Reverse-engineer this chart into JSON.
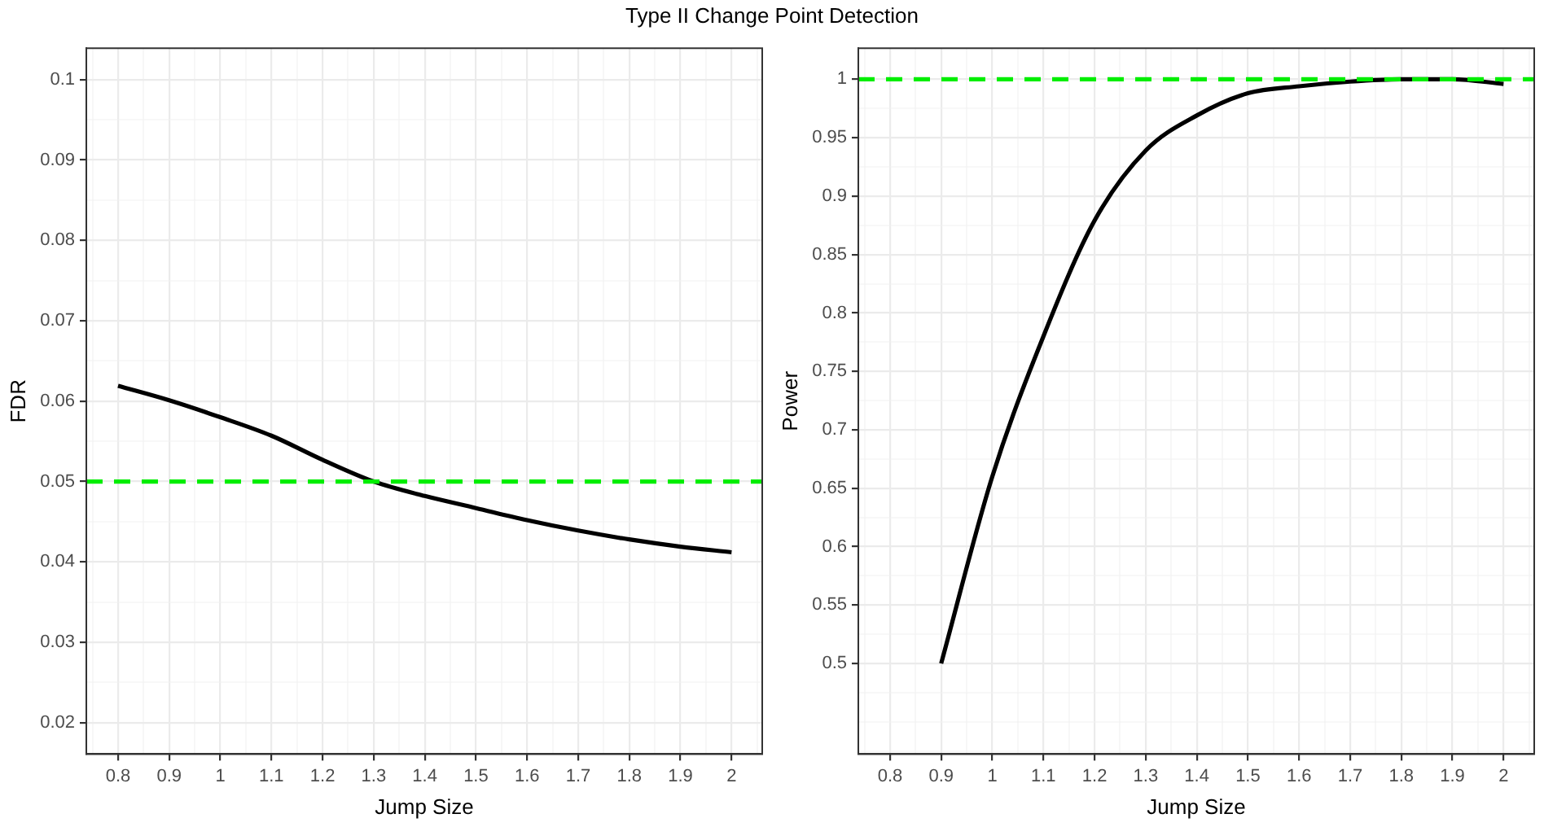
{
  "chart_data": [
    {
      "type": "line",
      "title": "Type II Change Point Detection",
      "xlabel": "Jump Size",
      "ylabel": "FDR",
      "grid": true,
      "marker": "none",
      "line_style": "solid",
      "x": [
        0.8,
        0.9,
        1.0,
        1.1,
        1.2,
        1.3,
        1.4,
        1.5,
        1.6,
        1.7,
        1.8,
        1.9,
        2.0
      ],
      "series": [
        {
          "color": "#000000",
          "values": [
            0.0619,
            0.0601,
            0.058,
            0.0557,
            0.0527,
            0.05,
            0.0482,
            0.0467,
            0.0452,
            0.0439,
            0.0428,
            0.0419,
            0.0412
          ]
        }
      ],
      "xlim": [
        0.738,
        2.06
      ],
      "ylim": [
        0.0161,
        0.1039
      ],
      "xticks": [
        {
          "value": 0.75,
          "label": null
        },
        0.8,
        {
          "value": 0.85,
          "label": null
        },
        0.9,
        {
          "value": 0.95,
          "label": null
        },
        1,
        {
          "value": 1.05,
          "label": null
        },
        1.1,
        {
          "value": 1.15,
          "label": null
        },
        1.2,
        {
          "value": 1.25,
          "label": null
        },
        1.3,
        {
          "value": 1.35,
          "label": null
        },
        1.4,
        {
          "value": 1.45,
          "label": null
        },
        1.5,
        {
          "value": 1.55,
          "label": null
        },
        1.6,
        {
          "value": 1.65,
          "label": null
        },
        1.7,
        {
          "value": 1.75,
          "label": null
        },
        1.8,
        {
          "value": 1.85,
          "label": null
        },
        1.9,
        {
          "value": 1.95,
          "label": null
        },
        2,
        {
          "value": 2.05,
          "label": null
        }
      ],
      "yticks": [
        0.02,
        {
          "value": 0.025,
          "label": null
        },
        0.03,
        {
          "value": 0.035,
          "label": null
        },
        0.04,
        {
          "value": 0.045,
          "label": null
        },
        0.05,
        {
          "value": 0.055,
          "label": null
        },
        0.06,
        {
          "value": 0.065,
          "label": null
        },
        0.07,
        {
          "value": 0.075,
          "label": null
        },
        0.08,
        {
          "value": 0.085,
          "label": null
        },
        0.09,
        {
          "value": 0.095,
          "label": null
        },
        0.1
      ],
      "ref_lines": [
        {
          "axis": "y",
          "value": 0.05,
          "color": "#00ee00",
          "line_style": "dashed"
        }
      ]
    },
    {
      "type": "line",
      "xlabel": "Jump Size",
      "ylabel": "Power",
      "grid": true,
      "marker": "none",
      "line_style": "solid",
      "x": [
        0.9,
        1.0,
        1.1,
        1.2,
        1.3,
        1.4,
        1.5,
        1.6,
        1.7,
        1.8,
        1.9,
        2.0
      ],
      "series": [
        {
          "color": "#000000",
          "values": [
            0.5,
            0.66,
            0.78,
            0.879,
            0.939,
            0.969,
            0.988,
            0.994,
            0.998,
            1.0,
            1.0,
            0.996
          ]
        }
      ],
      "xlim": [
        0.738,
        2.06
      ],
      "ylim": [
        0.4225,
        1.0266
      ],
      "xticks": [
        {
          "value": 0.75,
          "label": null
        },
        0.8,
        {
          "value": 0.85,
          "label": null
        },
        0.9,
        {
          "value": 0.95,
          "label": null
        },
        1,
        {
          "value": 1.05,
          "label": null
        },
        1.1,
        {
          "value": 1.15,
          "label": null
        },
        1.2,
        {
          "value": 1.25,
          "label": null
        },
        1.3,
        {
          "value": 1.35,
          "label": null
        },
        1.4,
        {
          "value": 1.45,
          "label": null
        },
        1.5,
        {
          "value": 1.55,
          "label": null
        },
        1.6,
        {
          "value": 1.65,
          "label": null
        },
        1.7,
        {
          "value": 1.75,
          "label": null
        },
        1.8,
        {
          "value": 1.85,
          "label": null
        },
        1.9,
        {
          "value": 1.95,
          "label": null
        },
        2,
        {
          "value": 2.05,
          "label": null
        }
      ],
      "yticks": [
        {
          "value": 0.425,
          "label": null
        },
        {
          "value": 0.45,
          "label": null
        },
        {
          "value": 0.475,
          "label": null
        },
        0.5,
        {
          "value": 0.525,
          "label": null
        },
        0.55,
        {
          "value": 0.575,
          "label": null
        },
        0.6,
        {
          "value": 0.625,
          "label": null
        },
        0.65,
        {
          "value": 0.675,
          "label": null
        },
        0.7,
        {
          "value": 0.725,
          "label": null
        },
        0.75,
        {
          "value": 0.775,
          "label": null
        },
        0.8,
        {
          "value": 0.825,
          "label": null
        },
        0.85,
        {
          "value": 0.875,
          "label": null
        },
        0.9,
        {
          "value": 0.925,
          "label": null
        },
        0.95,
        {
          "value": 0.975,
          "label": null
        },
        1
      ],
      "ref_lines": [
        {
          "axis": "y",
          "value": 1,
          "color": "#00ee00",
          "line_style": "dashed"
        }
      ]
    }
  ]
}
